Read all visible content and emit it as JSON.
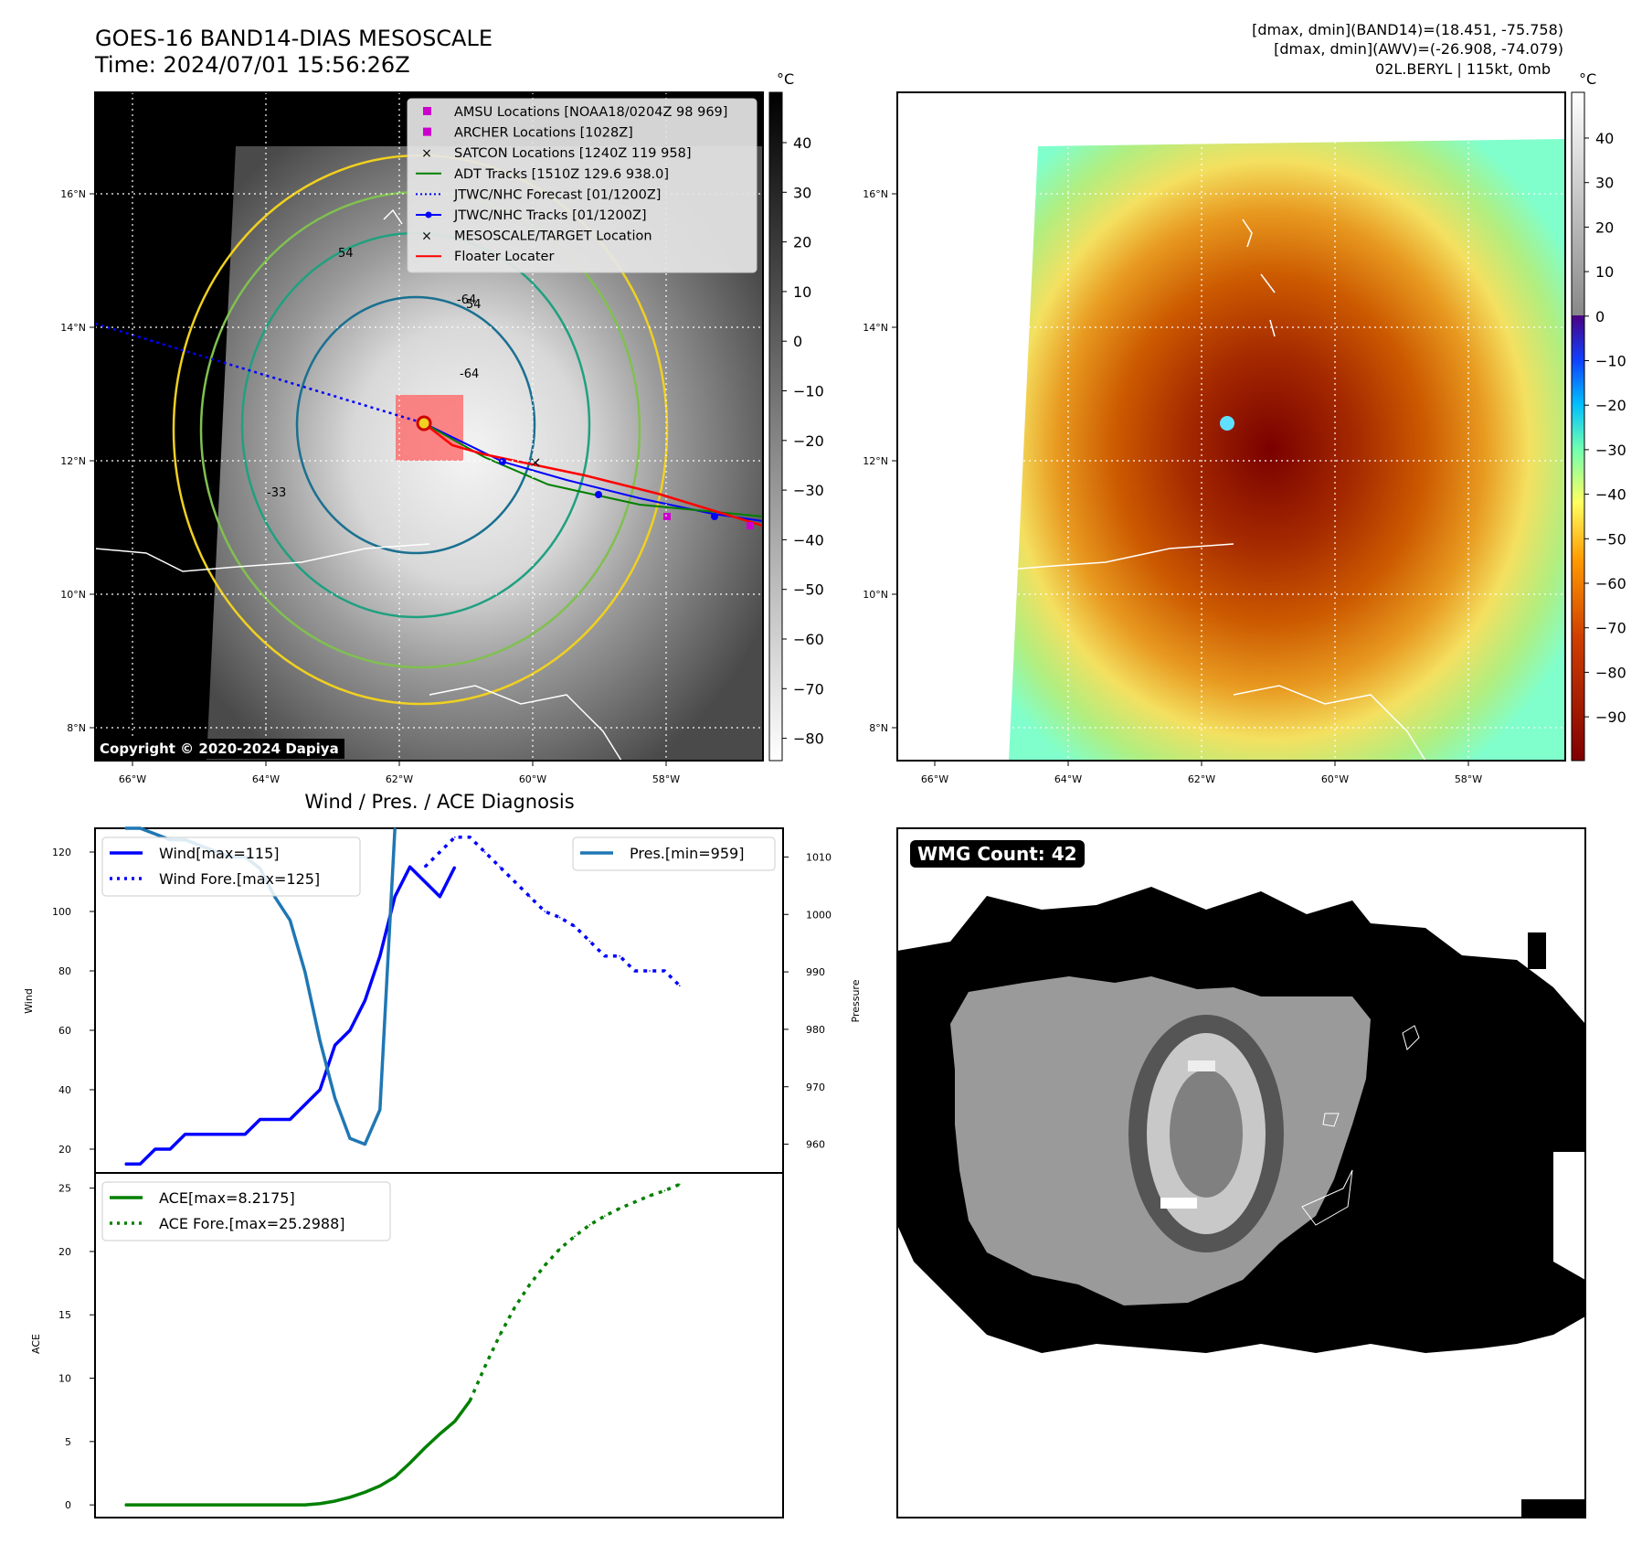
{
  "header": {
    "title_line1": "GOES-16 BAND14-DIAS MESOSCALE",
    "title_line2": "Time: 2024/07/01 15:56:26Z",
    "info_line1": "[dmax, dmin](BAND14)=(18.451, -75.758)",
    "info_line2": "[dmax, dmin](AWV)=(-26.908, -74.079)",
    "info_line3": "02L.BERYL | 115kt, 0mb"
  },
  "colors": {
    "wind": "#0000ff",
    "pressure": "#1f77b4",
    "ace": "#008000",
    "forecast_track": "#0000ff",
    "adt_track": "#008000",
    "floater": "#ff0000",
    "amsu": "#cc00cc",
    "satcon": "#00bbbb"
  },
  "map_common": {
    "lon_ticks": [
      "66°W",
      "64°W",
      "62°W",
      "60°W",
      "58°W"
    ],
    "lat_ticks": [
      "16°N",
      "14°N",
      "12°N",
      "10°N",
      "8°N"
    ],
    "lon_values": [
      -66,
      -64,
      -62,
      -60,
      -58
    ],
    "lat_values": [
      16,
      14,
      12,
      10,
      8
    ]
  },
  "panel_ir": {
    "colorbar_unit": "°C",
    "colorbar_ticks": [
      "40",
      "30",
      "20",
      "10",
      "0",
      "−10",
      "−20",
      "−30",
      "−40",
      "−50",
      "−60",
      "−70",
      "−80"
    ],
    "copyright": "Copyright © 2020-2024 Dapiya",
    "legend": [
      {
        "label": "AMSU Locations [NOAA18/0204Z 98 969]",
        "icon": "square-marker",
        "color": "#cc00cc"
      },
      {
        "label": "ARCHER Locations [1028Z]",
        "icon": "square-marker",
        "color": "#cc00cc"
      },
      {
        "label": "SATCON Locations [1240Z 119 958]",
        "icon": "x-marker",
        "color": "#00bbbb"
      },
      {
        "label": "ADT Tracks [1510Z 129.6 938.0]",
        "icon": "solid-line",
        "color": "#008000"
      },
      {
        "label": "JTWC/NHC Forecast [01/1200Z]",
        "icon": "dotted-line",
        "color": "#0000ff"
      },
      {
        "label": "JTWC/NHC Tracks [01/1200Z]",
        "icon": "line-dot",
        "color": "#0000ff"
      },
      {
        "label": "MESOSCALE/TARGET Location",
        "icon": "x-marker",
        "color": "#ff0000"
      },
      {
        "label": "Floater Locater",
        "icon": "solid-line",
        "color": "#ff0000"
      }
    ],
    "contour_labels": [
      "-64",
      "54",
      "-64",
      "54",
      "-33"
    ]
  },
  "panel_awv": {
    "colorbar_unit": "°C",
    "colorbar_ticks": [
      "40",
      "30",
      "20",
      "10",
      "0",
      "−10",
      "−20",
      "−30",
      "−40",
      "−50",
      "−60",
      "−70",
      "−80",
      "−90"
    ]
  },
  "panel_wmg": {
    "label": "WMG Count: 42"
  },
  "chart_data": [
    {
      "type": "line",
      "title": "Wind / Pres. / ACE Diagnosis",
      "ylabel": "Wind",
      "ylim": [
        12,
        128
      ],
      "y_ticks": [
        20,
        40,
        60,
        80,
        100,
        120
      ],
      "series": [
        {
          "name": "Wind[max=115]",
          "values": [
            15,
            15,
            20,
            20,
            25,
            25,
            25,
            25,
            25,
            30,
            30,
            30,
            35,
            40,
            55,
            60,
            70,
            85,
            105,
            115,
            110,
            105,
            115
          ]
        },
        {
          "name": "Wind Fore.[max=125]",
          "values": [
            115,
            120,
            125,
            125,
            120,
            115,
            110,
            105,
            100,
            98,
            95,
            90,
            85,
            85,
            80,
            80,
            80,
            75
          ]
        }
      ]
    },
    {
      "type": "line",
      "ylabel": "Pressure",
      "ylim": [
        955,
        1015
      ],
      "y_ticks": [
        960,
        970,
        980,
        990,
        1000,
        1010
      ],
      "series": [
        {
          "name": "Pres.[min=959]",
          "values": [
            1015,
            1015,
            1014,
            1013,
            1013,
            1012,
            1011,
            1010,
            1010,
            1008,
            1003,
            999,
            990,
            978,
            968,
            961,
            960,
            966,
            1015
          ]
        }
      ]
    },
    {
      "type": "line",
      "ylabel": "ACE",
      "ylim": [
        -1,
        26.2
      ],
      "y_ticks": [
        0,
        5,
        10,
        15,
        20,
        25
      ],
      "series": [
        {
          "name": "ACE[max=8.2175]",
          "values": [
            0,
            0,
            0,
            0,
            0,
            0,
            0,
            0,
            0,
            0,
            0,
            0,
            0,
            0.1,
            0.3,
            0.6,
            1.0,
            1.5,
            2.2,
            3.3,
            4.5,
            5.6,
            6.6,
            8.2
          ]
        },
        {
          "name": "ACE Fore.[max=25.2988]",
          "values": [
            8.2,
            10.9,
            13.4,
            15.6,
            17.4,
            18.9,
            20.2,
            21.2,
            22.1,
            22.8,
            23.4,
            23.9,
            24.4,
            24.8,
            25.3
          ]
        }
      ]
    }
  ]
}
